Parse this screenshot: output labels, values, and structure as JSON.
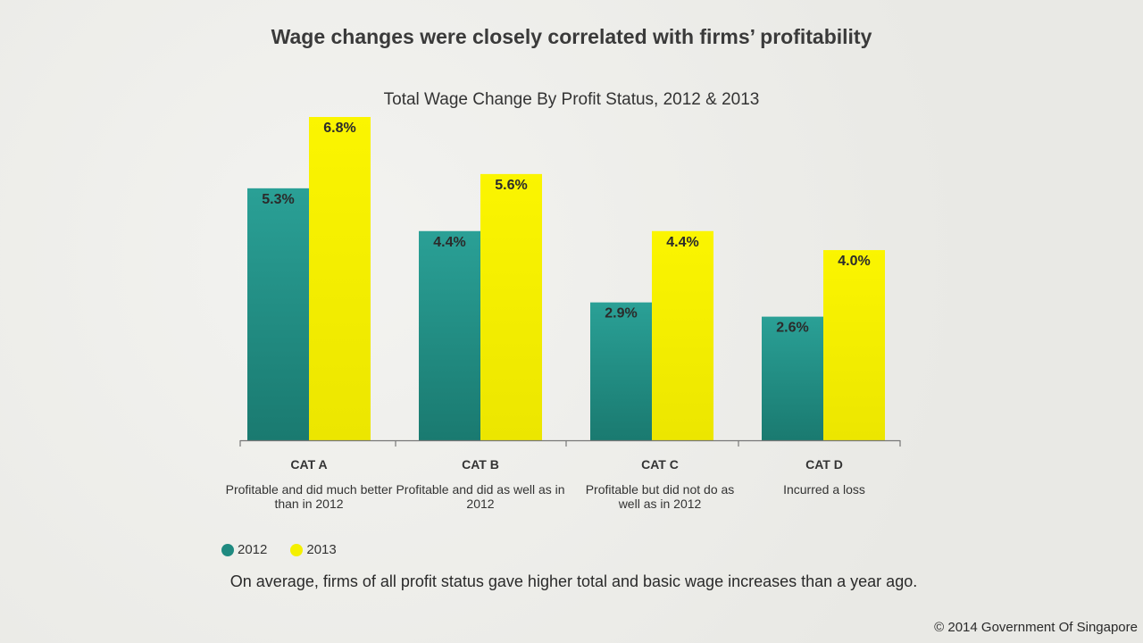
{
  "headline": "Wage changes were closely correlated with firms’ profitability",
  "note": "On average, firms of all profit status gave higher total and basic wage increases than a year ago.",
  "copyright": "© 2014 Government Of Singapore",
  "colors": {
    "s2012": "#1f8a80",
    "s2013": "#f4f000",
    "axis": "#777777"
  },
  "categories": [
    {
      "name": "CAT A",
      "desc": "Profitable and did much better than in 2012"
    },
    {
      "name": "CAT B",
      "desc": "Profitable and did as well as in 2012"
    },
    {
      "name": "CAT C",
      "desc": "Profitable but did not do as well as in 2012"
    },
    {
      "name": "CAT D",
      "desc": "Incurred a loss"
    }
  ],
  "chart_data": {
    "type": "bar",
    "title": "Total Wage Change By Profit Status, 2012 & 2013",
    "categories": [
      "CAT A",
      "CAT B",
      "CAT C",
      "CAT D"
    ],
    "series": [
      {
        "name": "2012",
        "values": [
          5.3,
          4.4,
          2.9,
          2.6
        ],
        "labels": [
          "5.3%",
          "4.4%",
          "2.9%",
          "2.6%"
        ]
      },
      {
        "name": "2013",
        "values": [
          6.8,
          5.6,
          4.4,
          4.0
        ],
        "labels": [
          "6.8%",
          "5.6%",
          "4.4%",
          "4.0%"
        ]
      }
    ],
    "ylim": [
      0,
      6.8
    ],
    "xlabel": "",
    "ylabel": "",
    "grid": false,
    "legend": "bottom-left"
  }
}
